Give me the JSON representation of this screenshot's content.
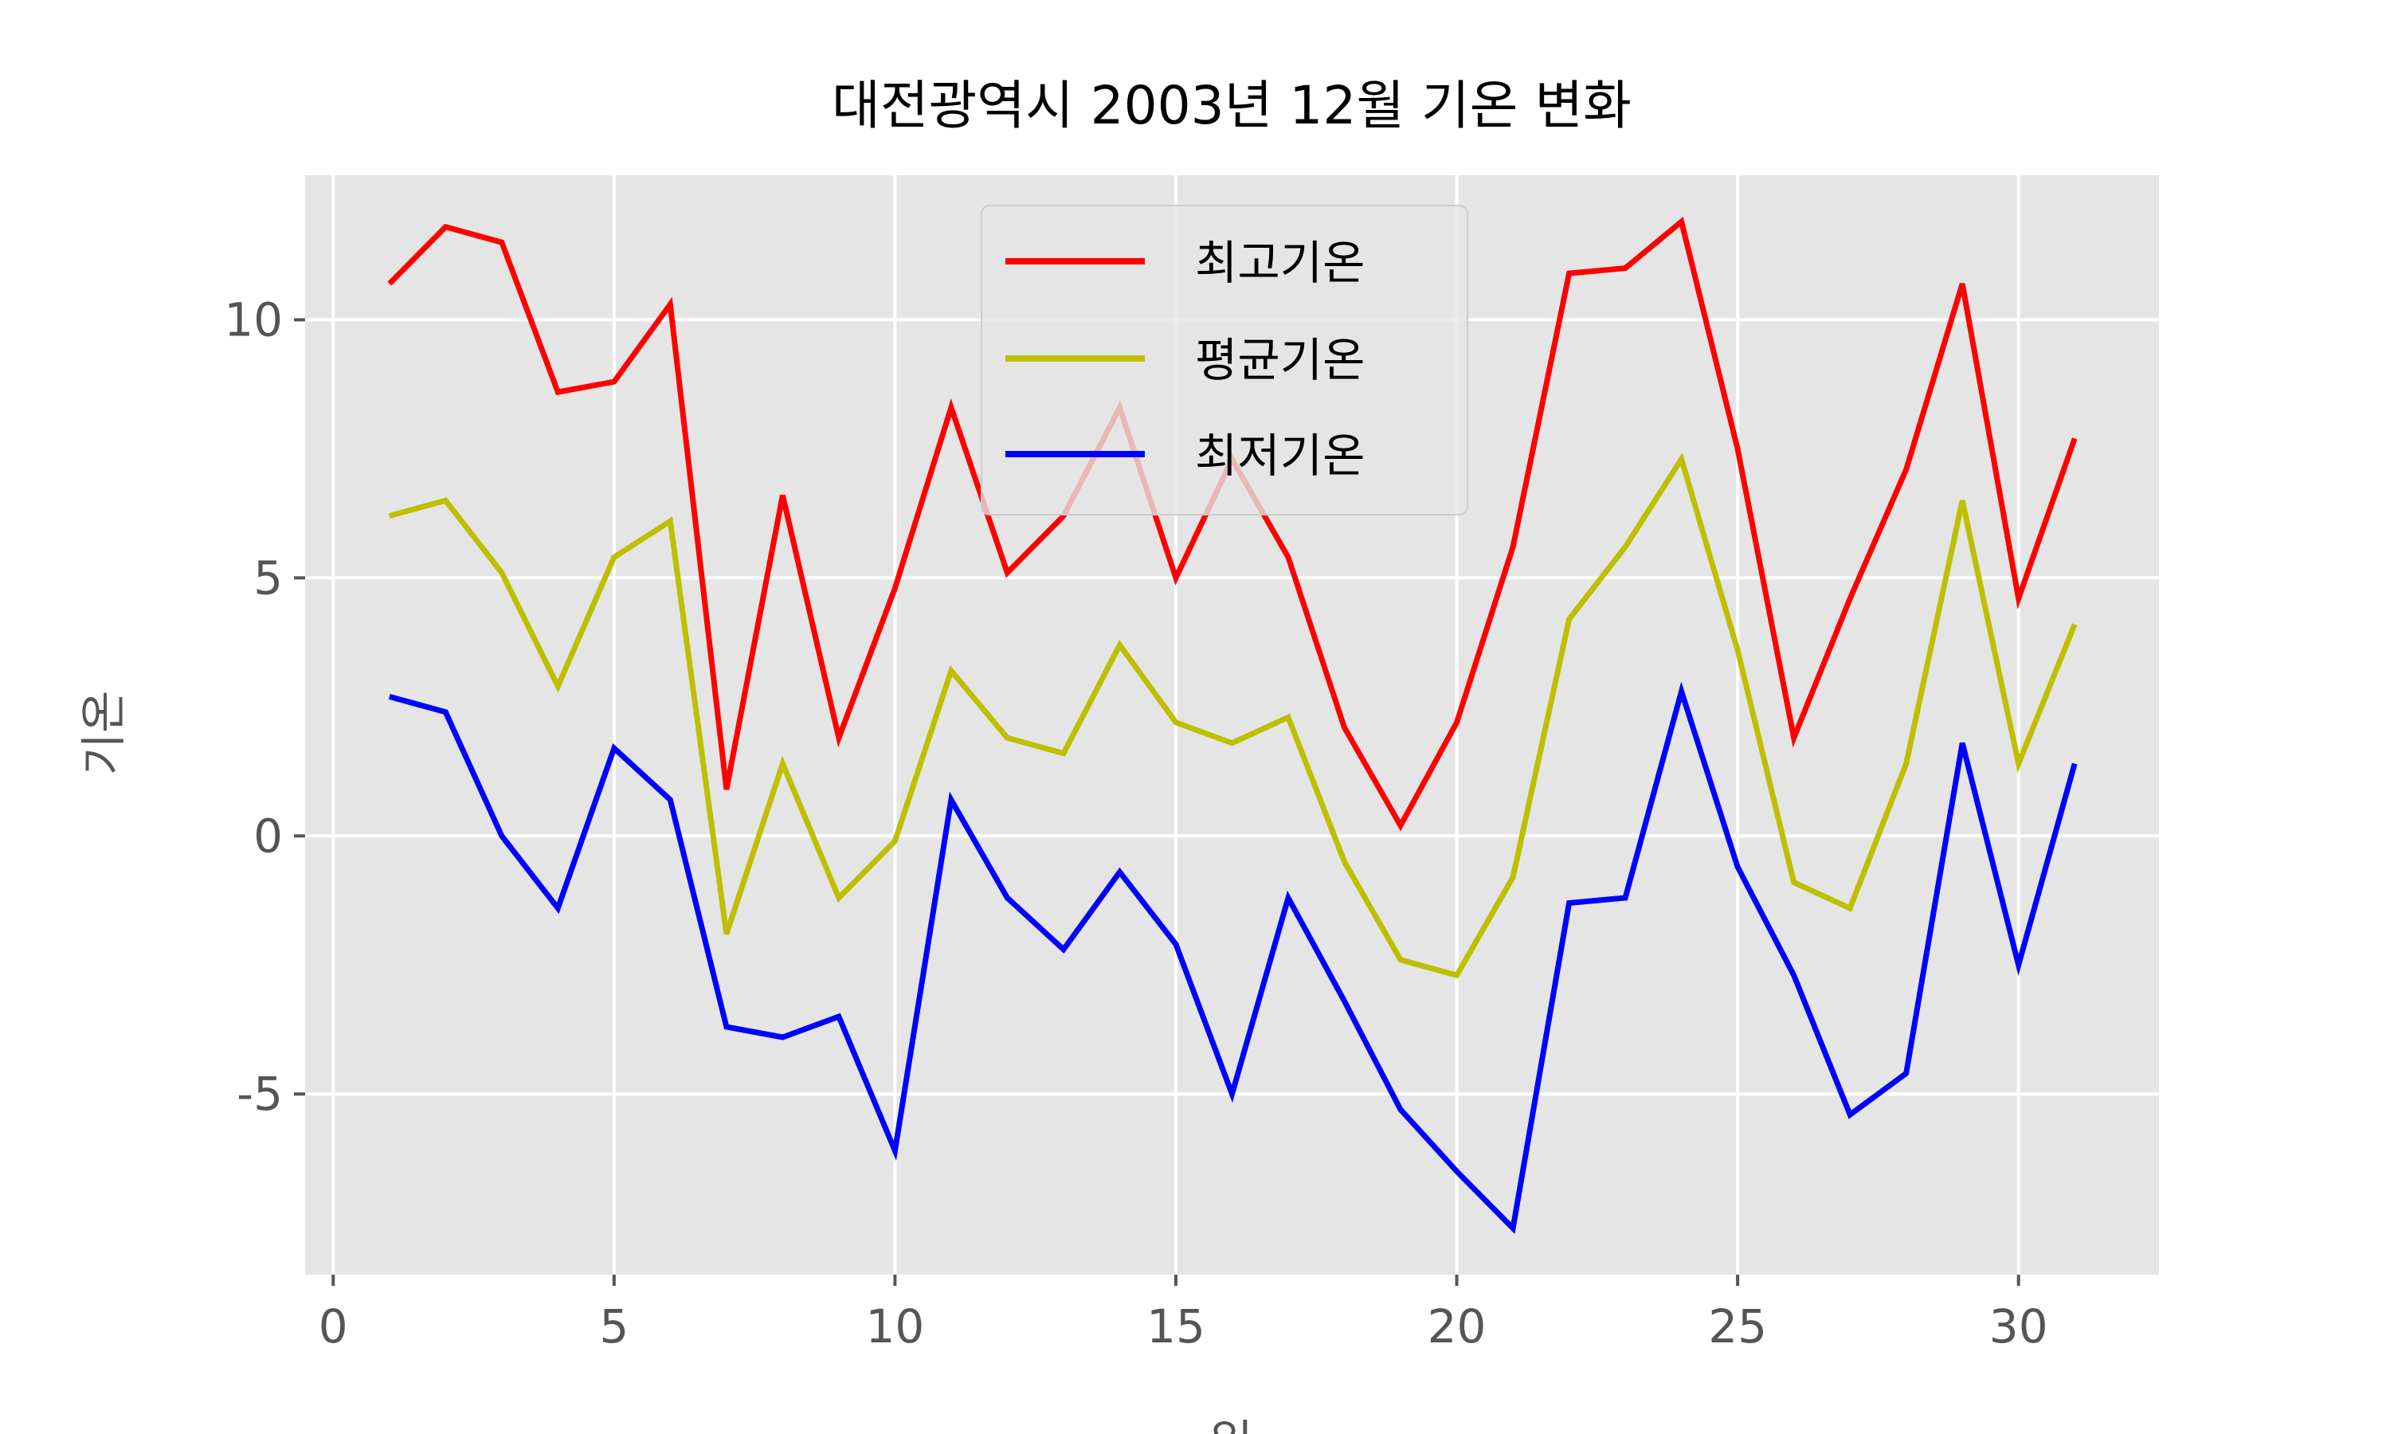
{
  "chart_data": {
    "type": "line",
    "title": "대전광역시 2003년 12월 기온 변화",
    "xlabel": "일",
    "ylabel": "기온",
    "xlim": [
      -0.5,
      32.5
    ],
    "ylim": [
      -8.5,
      12.8
    ],
    "xticks": [
      0,
      5,
      10,
      15,
      20,
      25,
      30
    ],
    "yticks": [
      -5,
      0,
      5,
      10
    ],
    "ytick_labels": [
      "-5",
      "0",
      "5",
      "10"
    ],
    "grid": true,
    "legend_position": "upper center",
    "x": [
      1,
      2,
      3,
      4,
      5,
      6,
      7,
      8,
      9,
      10,
      11,
      12,
      13,
      14,
      15,
      16,
      17,
      18,
      19,
      20,
      21,
      22,
      23,
      24,
      25,
      26,
      27,
      28,
      29,
      30,
      31
    ],
    "series": [
      {
        "name": "최고기온",
        "color": "#ff0000",
        "values": [
          10.7,
          11.8,
          11.5,
          8.6,
          8.8,
          10.3,
          0.9,
          6.6,
          1.9,
          4.8,
          8.3,
          5.1,
          6.2,
          8.3,
          5.0,
          7.3,
          5.4,
          2.1,
          0.2,
          2.2,
          5.6,
          10.9,
          11.0,
          11.9,
          7.5,
          1.9,
          4.6,
          7.1,
          10.7,
          4.6,
          7.7
        ]
      },
      {
        "name": "평균기온",
        "color": "#bfbf00",
        "values": [
          6.2,
          6.5,
          5.1,
          2.9,
          5.4,
          6.1,
          -1.9,
          1.4,
          -1.2,
          -0.1,
          3.2,
          1.9,
          1.6,
          3.7,
          2.2,
          1.8,
          2.3,
          -0.5,
          -2.4,
          -2.7,
          -0.8,
          4.2,
          5.6,
          7.3,
          3.6,
          -0.9,
          -1.4,
          1.4,
          6.5,
          1.4,
          4.1
        ]
      },
      {
        "name": "최저기온",
        "color": "#0000ff",
        "values": [
          2.7,
          2.4,
          0.0,
          -1.4,
          1.7,
          0.7,
          -3.7,
          -3.9,
          -3.5,
          -6.1,
          0.7,
          -1.2,
          -2.2,
          -0.7,
          -2.1,
          -5.0,
          -1.2,
          -3.2,
          -5.3,
          -6.5,
          -7.6,
          -1.3,
          -1.2,
          2.8,
          -0.6,
          -2.7,
          -5.4,
          -4.6,
          1.8,
          -2.5,
          1.4
        ]
      }
    ],
    "colors": {
      "plot_bg": "#e5e5e5",
      "grid": "#ffffff",
      "tick_label": "#555555",
      "axis_label": "#555555",
      "title": "#000000"
    }
  }
}
